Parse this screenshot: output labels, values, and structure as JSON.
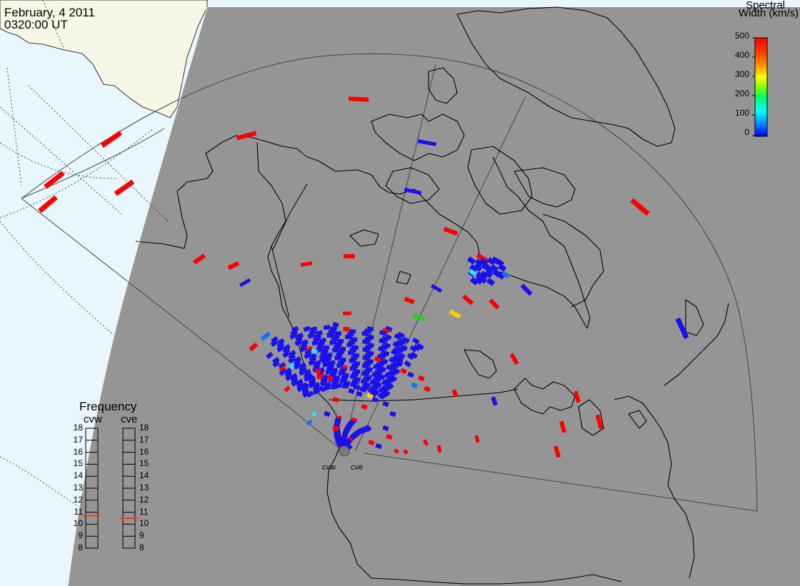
{
  "header": {
    "date": "February, 4 2011",
    "time": "0320:00 UT"
  },
  "colorbar": {
    "title_line1": "Spectral",
    "title_line2": "Width (km/s)",
    "ticks": [
      "500",
      "400",
      "300",
      "200",
      "100",
      "0"
    ],
    "colors": [
      "#0000ff",
      "#00a0ff",
      "#00ffff",
      "#00ff60",
      "#80ff00",
      "#ffff00",
      "#ffa000",
      "#ff4000",
      "#ff0000"
    ]
  },
  "frequency": {
    "title": "Frequency",
    "radars": [
      {
        "name": "cvw",
        "value_mhz": 10.7
      },
      {
        "name": "cve",
        "value_mhz": 10.5
      }
    ],
    "ticks": [
      "18",
      "17",
      "16",
      "15",
      "14",
      "13",
      "12",
      "11",
      "10",
      "9",
      "8"
    ],
    "marker_color": "#ff4000"
  },
  "radar_sites": [
    {
      "label": "cvw"
    },
    {
      "label": "cve"
    }
  ],
  "map_colors": {
    "night": "#959595",
    "ocean": "#e8f6fd",
    "land_day": "#f7f7e8",
    "scatter_low": "#1a10f0",
    "scatter_high": "#ff0000"
  }
}
